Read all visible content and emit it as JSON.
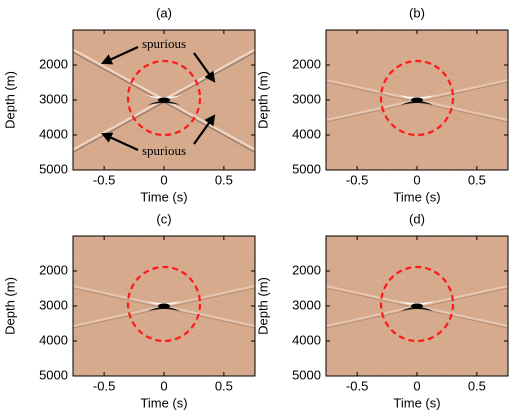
{
  "chart_data": [
    {
      "type": "image",
      "title": "(a)",
      "xlabel": "Time (s)",
      "ylabel": "Depth (m)",
      "xlim": [
        -0.76,
        0.76
      ],
      "ylim": [
        1000,
        5000
      ],
      "xticks": [
        -0.5,
        0,
        0.5
      ],
      "yticks": [
        2000,
        3000,
        4000,
        5000
      ],
      "annotations": [
        "spurious",
        "spurious"
      ],
      "strong_artifacts": true
    },
    {
      "type": "image",
      "title": "(b)",
      "xlabel": "Time (s)",
      "ylabel": "Depth (m)",
      "xlim": [
        -0.76,
        0.76
      ],
      "ylim": [
        1000,
        5000
      ],
      "xticks": [
        -0.5,
        0,
        0.5
      ],
      "yticks": [
        2000,
        3000,
        4000,
        5000
      ],
      "strong_artifacts": false
    },
    {
      "type": "image",
      "title": "(c)",
      "xlabel": "Time (s)",
      "ylabel": "Depth (m)",
      "xlim": [
        -0.76,
        0.76
      ],
      "ylim": [
        1000,
        5000
      ],
      "xticks": [
        -0.5,
        0,
        0.5
      ],
      "yticks": [
        2000,
        3000,
        4000,
        5000
      ],
      "strong_artifacts": false
    },
    {
      "type": "image",
      "title": "(d)",
      "xlabel": "Time (s)",
      "ylabel": "Depth (m)",
      "xlim": [
        -0.76,
        0.76
      ],
      "ylim": [
        1000,
        5000
      ],
      "xticks": [
        -0.5,
        0,
        0.5
      ],
      "yticks": [
        2000,
        3000,
        4000,
        5000
      ],
      "strong_artifacts": false
    }
  ]
}
